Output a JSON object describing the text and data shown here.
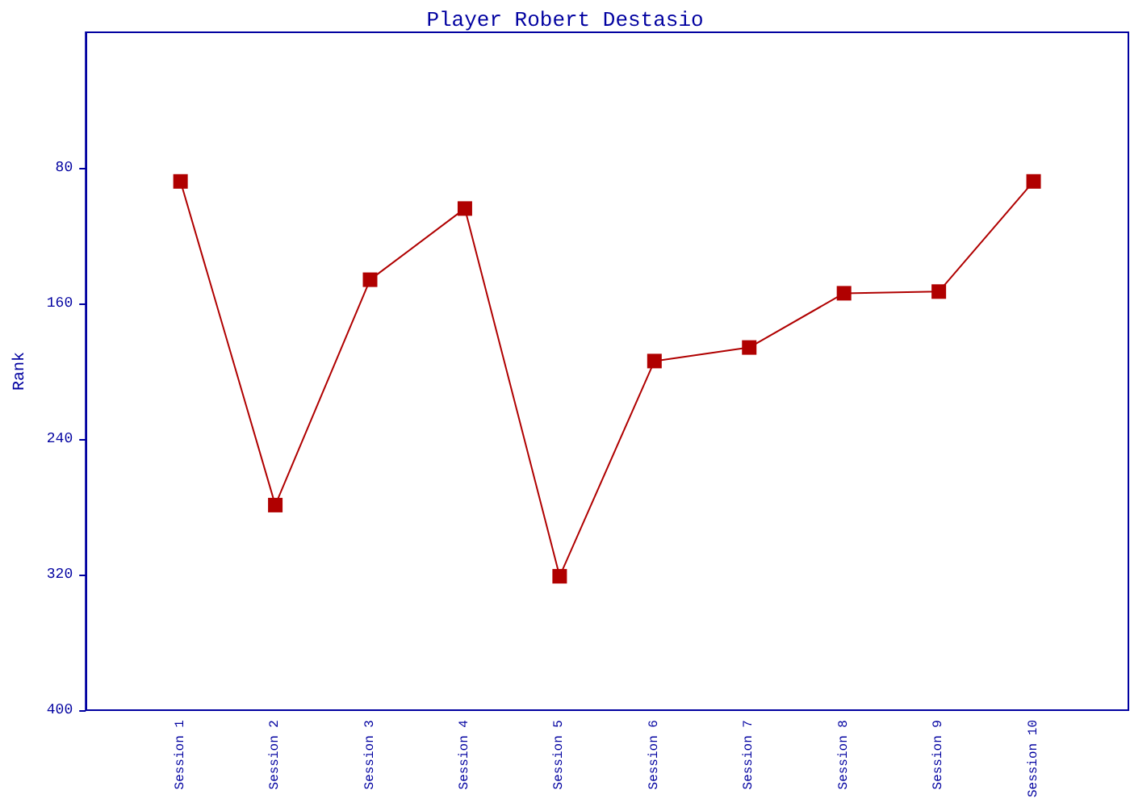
{
  "chart_data": {
    "type": "line",
    "title": "Player Robert Destasio",
    "ylabel": "Rank",
    "categories": [
      "Session 1",
      "Session 2",
      "Session 3",
      "Session 4",
      "Session 5",
      "Session 6",
      "Session 7",
      "Session 8",
      "Session 9",
      "Session 10"
    ],
    "series": [
      {
        "color": "#b00000",
        "values": [
          88,
          279,
          146,
          104,
          321,
          194,
          186,
          154,
          153,
          88
        ]
      }
    ],
    "ylim": [
      400,
      0
    ],
    "yticks": [
      80,
      160,
      240,
      320,
      400
    ],
    "grid": false,
    "marker": "square",
    "line_style": "solid"
  }
}
